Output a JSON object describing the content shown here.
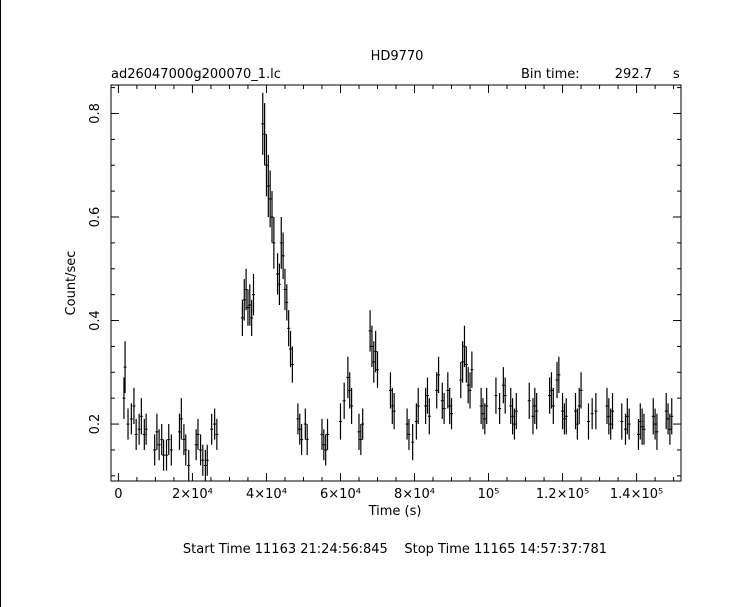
{
  "chart_data": {
    "type": "line",
    "title": "HD9770",
    "file_label": "ad26047000g200070_1.lc",
    "bin_time_label": "Bin time:",
    "bin_time_value": "292.7",
    "bin_time_unit": "s",
    "xlabel": "Time (s)",
    "ylabel": "Count/sec",
    "xlim": [
      -2000,
      152000
    ],
    "ylim": [
      0.09,
      0.855
    ],
    "x_ticks": [
      {
        "value": 0,
        "label": "0"
      },
      {
        "value": 20000,
        "label": "2×10⁴"
      },
      {
        "value": 40000,
        "label": "4×10⁴"
      },
      {
        "value": 60000,
        "label": "6×10⁴"
      },
      {
        "value": 80000,
        "label": "8×10⁴"
      },
      {
        "value": 100000,
        "label": "10⁵"
      },
      {
        "value": 120000,
        "label": "1.2×10⁵"
      },
      {
        "value": 140000,
        "label": "1.4×10⁵"
      }
    ],
    "y_ticks": [
      {
        "value": 0.2,
        "label": "0.2"
      },
      {
        "value": 0.4,
        "label": "0.4"
      },
      {
        "value": 0.6,
        "label": "0.6"
      },
      {
        "value": 0.8,
        "label": "0.8"
      }
    ],
    "footer": "Start Time 11163 21:24:56:845    Stop Time 11165 14:57:37:781",
    "series": [
      {
        "values": [
          [
            1500,
            0.29,
            0.21
          ],
          [
            1800,
            0.36,
            0.26
          ],
          [
            2600,
            0.23,
            0.17
          ],
          [
            3500,
            0.24,
            0.18
          ],
          [
            4200,
            0.27,
            0.2
          ],
          [
            4800,
            0.21,
            0.15
          ],
          [
            5600,
            0.22,
            0.16
          ],
          [
            6200,
            0.25,
            0.18
          ],
          [
            7000,
            0.21,
            0.15
          ],
          [
            7500,
            0.22,
            0.16
          ],
          [
            9800,
            0.18,
            0.12
          ],
          [
            10400,
            0.22,
            0.15
          ],
          [
            11000,
            0.19,
            0.13
          ],
          [
            11700,
            0.2,
            0.14
          ],
          [
            12200,
            0.17,
            0.11
          ],
          [
            13000,
            0.17,
            0.11
          ],
          [
            13600,
            0.2,
            0.14
          ],
          [
            14300,
            0.18,
            0.12
          ],
          [
            16500,
            0.22,
            0.15
          ],
          [
            17000,
            0.25,
            0.17
          ],
          [
            17700,
            0.2,
            0.14
          ],
          [
            18200,
            0.18,
            0.12
          ],
          [
            19000,
            0.15,
            0.09
          ],
          [
            21000,
            0.19,
            0.13
          ],
          [
            21500,
            0.21,
            0.15
          ],
          [
            22200,
            0.18,
            0.12
          ],
          [
            22800,
            0.16,
            0.1
          ],
          [
            23500,
            0.15,
            0.09
          ],
          [
            24000,
            0.16,
            0.1
          ],
          [
            25200,
            0.22,
            0.16
          ],
          [
            26000,
            0.23,
            0.17
          ],
          [
            26600,
            0.21,
            0.15
          ],
          [
            33500,
            0.44,
            0.37
          ],
          [
            34000,
            0.48,
            0.4
          ],
          [
            34500,
            0.5,
            0.42
          ],
          [
            35000,
            0.46,
            0.39
          ],
          [
            35500,
            0.47,
            0.39
          ],
          [
            36000,
            0.44,
            0.37
          ],
          [
            36500,
            0.49,
            0.41
          ],
          [
            39000,
            0.84,
            0.72
          ],
          [
            39500,
            0.82,
            0.7
          ],
          [
            40000,
            0.76,
            0.64
          ],
          [
            40500,
            0.72,
            0.6
          ],
          [
            41000,
            0.69,
            0.58
          ],
          [
            41500,
            0.65,
            0.55
          ],
          [
            42000,
            0.6,
            0.5
          ],
          [
            43000,
            0.53,
            0.45
          ],
          [
            43500,
            0.51,
            0.43
          ],
          [
            44000,
            0.6,
            0.5
          ],
          [
            44500,
            0.57,
            0.48
          ],
          [
            45000,
            0.5,
            0.42
          ],
          [
            45500,
            0.47,
            0.4
          ],
          [
            46000,
            0.42,
            0.35
          ],
          [
            46500,
            0.38,
            0.31
          ],
          [
            47000,
            0.35,
            0.28
          ],
          [
            48500,
            0.24,
            0.18
          ],
          [
            49000,
            0.22,
            0.16
          ],
          [
            49500,
            0.2,
            0.14
          ],
          [
            50500,
            0.23,
            0.17
          ],
          [
            51000,
            0.2,
            0.14
          ],
          [
            55000,
            0.21,
            0.15
          ],
          [
            55500,
            0.19,
            0.13
          ],
          [
            56000,
            0.18,
            0.12
          ],
          [
            56500,
            0.21,
            0.15
          ],
          [
            60000,
            0.24,
            0.17
          ],
          [
            61000,
            0.28,
            0.21
          ],
          [
            62000,
            0.33,
            0.25
          ],
          [
            62500,
            0.3,
            0.23
          ],
          [
            63000,
            0.27,
            0.2
          ],
          [
            65000,
            0.22,
            0.15
          ],
          [
            65500,
            0.2,
            0.14
          ],
          [
            66000,
            0.23,
            0.17
          ],
          [
            68000,
            0.42,
            0.34
          ],
          [
            68500,
            0.39,
            0.31
          ],
          [
            69000,
            0.36,
            0.28
          ],
          [
            69500,
            0.38,
            0.3
          ],
          [
            70000,
            0.34,
            0.27
          ],
          [
            73500,
            0.3,
            0.23
          ],
          [
            74000,
            0.27,
            0.2
          ],
          [
            74500,
            0.26,
            0.19
          ],
          [
            78000,
            0.23,
            0.17
          ],
          [
            78500,
            0.21,
            0.15
          ],
          [
            79500,
            0.2,
            0.13
          ],
          [
            80500,
            0.24,
            0.17
          ],
          [
            81000,
            0.27,
            0.2
          ],
          [
            83000,
            0.27,
            0.2
          ],
          [
            83500,
            0.29,
            0.22
          ],
          [
            84000,
            0.25,
            0.18
          ],
          [
            86000,
            0.3,
            0.23
          ],
          [
            86500,
            0.33,
            0.26
          ],
          [
            87500,
            0.28,
            0.21
          ],
          [
            88000,
            0.26,
            0.2
          ],
          [
            89000,
            0.3,
            0.23
          ],
          [
            89500,
            0.27,
            0.2
          ],
          [
            90000,
            0.25,
            0.19
          ],
          [
            92500,
            0.32,
            0.25
          ],
          [
            93000,
            0.36,
            0.28
          ],
          [
            93500,
            0.39,
            0.31
          ],
          [
            94000,
            0.35,
            0.28
          ],
          [
            94500,
            0.31,
            0.24
          ],
          [
            95000,
            0.3,
            0.23
          ],
          [
            95500,
            0.34,
            0.27
          ],
          [
            98000,
            0.27,
            0.2
          ],
          [
            98500,
            0.25,
            0.19
          ],
          [
            99000,
            0.24,
            0.18
          ],
          [
            99500,
            0.27,
            0.2
          ],
          [
            102000,
            0.29,
            0.22
          ],
          [
            103000,
            0.26,
            0.2
          ],
          [
            104000,
            0.31,
            0.24
          ],
          [
            104500,
            0.29,
            0.22
          ],
          [
            106000,
            0.27,
            0.2
          ],
          [
            106500,
            0.25,
            0.18
          ],
          [
            107000,
            0.23,
            0.17
          ],
          [
            107500,
            0.26,
            0.19
          ],
          [
            111000,
            0.28,
            0.21
          ],
          [
            112000,
            0.25,
            0.18
          ],
          [
            112500,
            0.27,
            0.2
          ],
          [
            113000,
            0.26,
            0.19
          ],
          [
            116500,
            0.29,
            0.22
          ],
          [
            117000,
            0.3,
            0.23
          ],
          [
            117500,
            0.27,
            0.2
          ],
          [
            118500,
            0.32,
            0.25
          ],
          [
            119000,
            0.33,
            0.26
          ],
          [
            120000,
            0.26,
            0.19
          ],
          [
            120500,
            0.24,
            0.18
          ],
          [
            121000,
            0.25,
            0.18
          ],
          [
            123500,
            0.26,
            0.19
          ],
          [
            124000,
            0.23,
            0.17
          ],
          [
            124500,
            0.27,
            0.2
          ],
          [
            125000,
            0.3,
            0.23
          ],
          [
            127000,
            0.24,
            0.17
          ],
          [
            128000,
            0.25,
            0.19
          ],
          [
            129000,
            0.26,
            0.19
          ],
          [
            132000,
            0.27,
            0.2
          ],
          [
            132500,
            0.25,
            0.18
          ],
          [
            133000,
            0.23,
            0.17
          ],
          [
            133500,
            0.26,
            0.19
          ],
          [
            136000,
            0.24,
            0.17
          ],
          [
            137000,
            0.22,
            0.16
          ],
          [
            137500,
            0.25,
            0.18
          ],
          [
            138000,
            0.23,
            0.17
          ],
          [
            140500,
            0.21,
            0.15
          ],
          [
            141000,
            0.24,
            0.17
          ],
          [
            141500,
            0.23,
            0.16
          ],
          [
            142000,
            0.22,
            0.16
          ],
          [
            144500,
            0.25,
            0.18
          ],
          [
            145000,
            0.23,
            0.17
          ],
          [
            145500,
            0.22,
            0.15
          ],
          [
            148000,
            0.26,
            0.19
          ],
          [
            148500,
            0.24,
            0.18
          ],
          [
            149000,
            0.22,
            0.16
          ],
          [
            149500,
            0.25,
            0.18
          ]
        ]
      }
    ],
    "value_format": "each point is [time_s, upper_error_bound, lower_error_bound] in Count/sec"
  }
}
